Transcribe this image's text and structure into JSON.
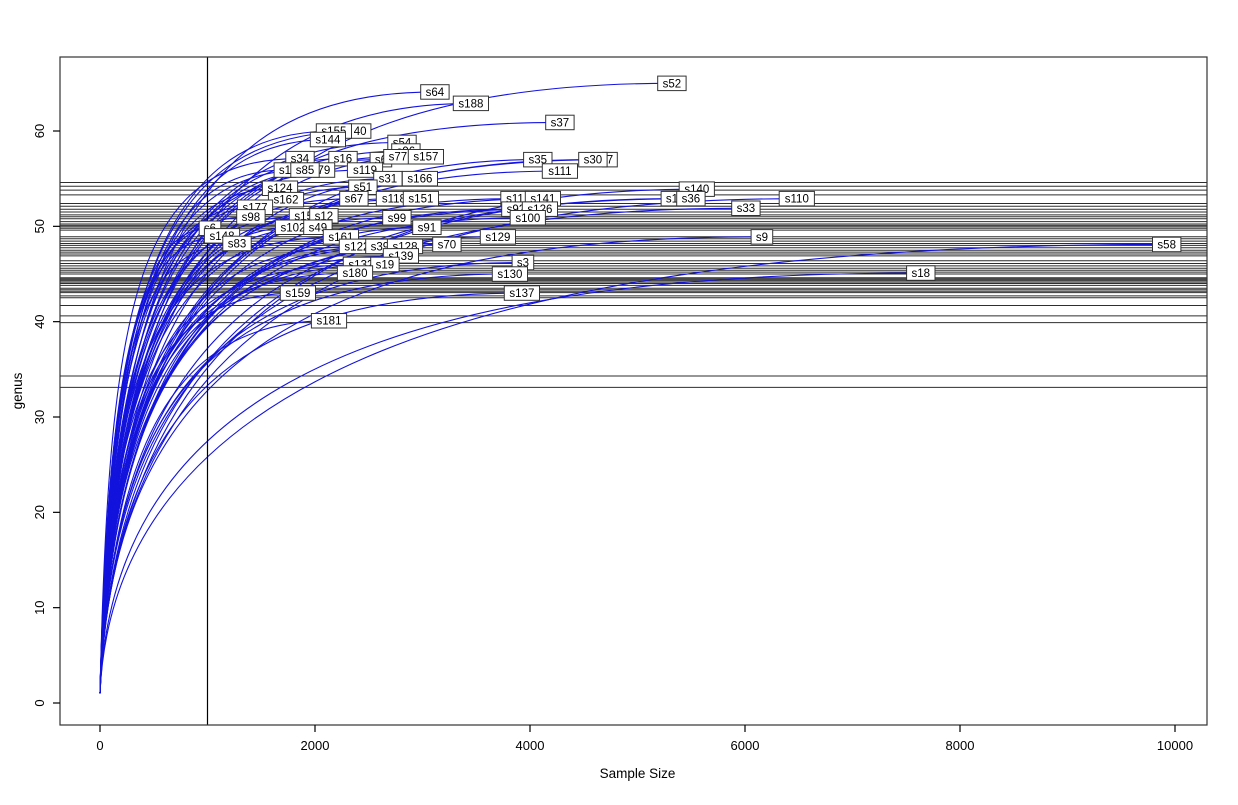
{
  "chart_data": {
    "type": "line",
    "title": "",
    "xlabel": "Sample Size",
    "ylabel": "genus",
    "xlim": [
      0,
      10300
    ],
    "ylim": [
      0,
      67
    ],
    "x_ticks": [
      0,
      2000,
      4000,
      6000,
      8000,
      10000
    ],
    "y_ticks": [
      0,
      10,
      20,
      30,
      40,
      50,
      60
    ],
    "grid": false,
    "legend": "none",
    "curve_color": "#1313dd",
    "hline_color": "#2e2e2e",
    "vline_color": "#000000",
    "box_color": "#333333",
    "vline_x": 1000,
    "hlines_genus": [
      54.6,
      54.2,
      53.8,
      53.3,
      52.4,
      52.1,
      51.8,
      51.5,
      51.2,
      51.0,
      50.8,
      50.5,
      50.25,
      50.1,
      49.95,
      49.8,
      49.6,
      48.9,
      48.7,
      48.45,
      48.2,
      48.0,
      47.75,
      47.5,
      47.3,
      47.1,
      46.9,
      46.4,
      46.1,
      45.85,
      45.6,
      45.4,
      45.2,
      45.0,
      44.6,
      44.5,
      44.4,
      44.3,
      44.15,
      44.0,
      43.8,
      43.5,
      43.35,
      43.2,
      43.05,
      42.7,
      42.5,
      41.7,
      40.6,
      39.9,
      34.3,
      33.1
    ],
    "series": [
      {
        "label": "s34",
        "size": 1860,
        "genus": 57.1
      },
      {
        "label": "40",
        "size": 2420,
        "genus": 60.0
      },
      {
        "label": "s155",
        "size": 2176,
        "genus": 60.0
      },
      {
        "label": "s144",
        "size": 2120,
        "genus": 59.1
      },
      {
        "label": "s54",
        "size": 2809,
        "genus": 58.8
      },
      {
        "label": "s96",
        "size": 2846,
        "genus": 57.9
      },
      {
        "label": "s16",
        "size": 2260,
        "genus": 57.1
      },
      {
        "label": "s6",
        "size": 2613,
        "genus": 57.0
      },
      {
        "label": "s77",
        "size": 2771,
        "genus": 57.3
      },
      {
        "label": "s157",
        "size": 3032,
        "genus": 57.3
      },
      {
        "label": "s1",
        "size": 1720,
        "genus": 55.9
      },
      {
        "label": "79",
        "size": 2083,
        "genus": 55.9
      },
      {
        "label": "s85",
        "size": 1907,
        "genus": 55.9
      },
      {
        "label": "s119",
        "size": 2465,
        "genus": 55.9
      },
      {
        "label": "7",
        "size": 4743,
        "genus": 57.0
      },
      {
        "label": "s30",
        "size": 4585,
        "genus": 57.0
      },
      {
        "label": "s35",
        "size": 4073,
        "genus": 57.0
      },
      {
        "label": "s111",
        "size": 4278,
        "genus": 55.8
      },
      {
        "label": "s31",
        "size": 2678,
        "genus": 55.0
      },
      {
        "label": "s166",
        "size": 2976,
        "genus": 55.0
      },
      {
        "label": "s124",
        "size": 1674,
        "genus": 54.0
      },
      {
        "label": "s51",
        "size": 2446,
        "genus": 54.1
      },
      {
        "label": "s140",
        "size": 5552,
        "genus": 53.9
      },
      {
        "label": "s162",
        "size": 1730,
        "genus": 52.8
      },
      {
        "label": "s67",
        "size": 2362,
        "genus": 52.9
      },
      {
        "label": "s118",
        "size": 2734,
        "genus": 52.9
      },
      {
        "label": "s151",
        "size": 2985,
        "genus": 52.9
      },
      {
        "label": "s11",
        "size": 3860,
        "genus": 52.9
      },
      {
        "label": "s141",
        "size": 4120,
        "genus": 52.9
      },
      {
        "label": "s1",
        "size": 5320,
        "genus": 52.9
      },
      {
        "label": "s36",
        "size": 5497,
        "genus": 52.9
      },
      {
        "label": "s110",
        "size": 6482,
        "genus": 52.9
      },
      {
        "label": "s177",
        "size": 1442,
        "genus": 52.0
      },
      {
        "label": "s92",
        "size": 3869,
        "genus": 51.8
      },
      {
        "label": "s126",
        "size": 4092,
        "genus": 51.8
      },
      {
        "label": "s33",
        "size": 6008,
        "genus": 51.9
      },
      {
        "label": "s98",
        "size": 1404,
        "genus": 51.0
      },
      {
        "label": "s158",
        "size": 1925,
        "genus": 51.1
      },
      {
        "label": "s12",
        "size": 2083,
        "genus": 51.1
      },
      {
        "label": "s99",
        "size": 2762,
        "genus": 50.9
      },
      {
        "label": "s100",
        "size": 3980,
        "genus": 50.9
      },
      {
        "label": "s6",
        "size": 1023,
        "genus": 49.8
      },
      {
        "label": "s102",
        "size": 1795,
        "genus": 49.9
      },
      {
        "label": "s49",
        "size": 2027,
        "genus": 49.9
      },
      {
        "label": "s91",
        "size": 3041,
        "genus": 49.9
      },
      {
        "label": "s148",
        "size": 1135,
        "genus": 49.0
      },
      {
        "label": "s161",
        "size": 2241,
        "genus": 48.9
      },
      {
        "label": "s129",
        "size": 3701,
        "genus": 48.9
      },
      {
        "label": "s9",
        "size": 6157,
        "genus": 48.9
      },
      {
        "label": "s83",
        "size": 1274,
        "genus": 48.2
      },
      {
        "label": "s122",
        "size": 2390,
        "genus": 47.9
      },
      {
        "label": "s39",
        "size": 2604,
        "genus": 47.9
      },
      {
        "label": "s128",
        "size": 2837,
        "genus": 47.9
      },
      {
        "label": "s70",
        "size": 3227,
        "genus": 48.1
      },
      {
        "label": "s58",
        "size": 9923,
        "genus": 48.1
      },
      {
        "label": "s139",
        "size": 2799,
        "genus": 46.9
      },
      {
        "label": "s132",
        "size": 2427,
        "genus": 46.0
      },
      {
        "label": "s19",
        "size": 2650,
        "genus": 46.0
      },
      {
        "label": "s3",
        "size": 3934,
        "genus": 46.2
      },
      {
        "label": "s180",
        "size": 2372,
        "genus": 45.1
      },
      {
        "label": "s130",
        "size": 3813,
        "genus": 45.0
      },
      {
        "label": "s18",
        "size": 7635,
        "genus": 45.1
      },
      {
        "label": "s159",
        "size": 1841,
        "genus": 43.0
      },
      {
        "label": "s137",
        "size": 3925,
        "genus": 43.0
      },
      {
        "label": "s181",
        "size": 2130,
        "genus": 40.1
      },
      {
        "label": "s64",
        "size": 3115,
        "genus": 64.1
      },
      {
        "label": "s188",
        "size": 3450,
        "genus": 62.9
      },
      {
        "label": "s52",
        "size": 5320,
        "genus": 65.0
      },
      {
        "label": "s37",
        "size": 4278,
        "genus": 60.9
      }
    ]
  }
}
